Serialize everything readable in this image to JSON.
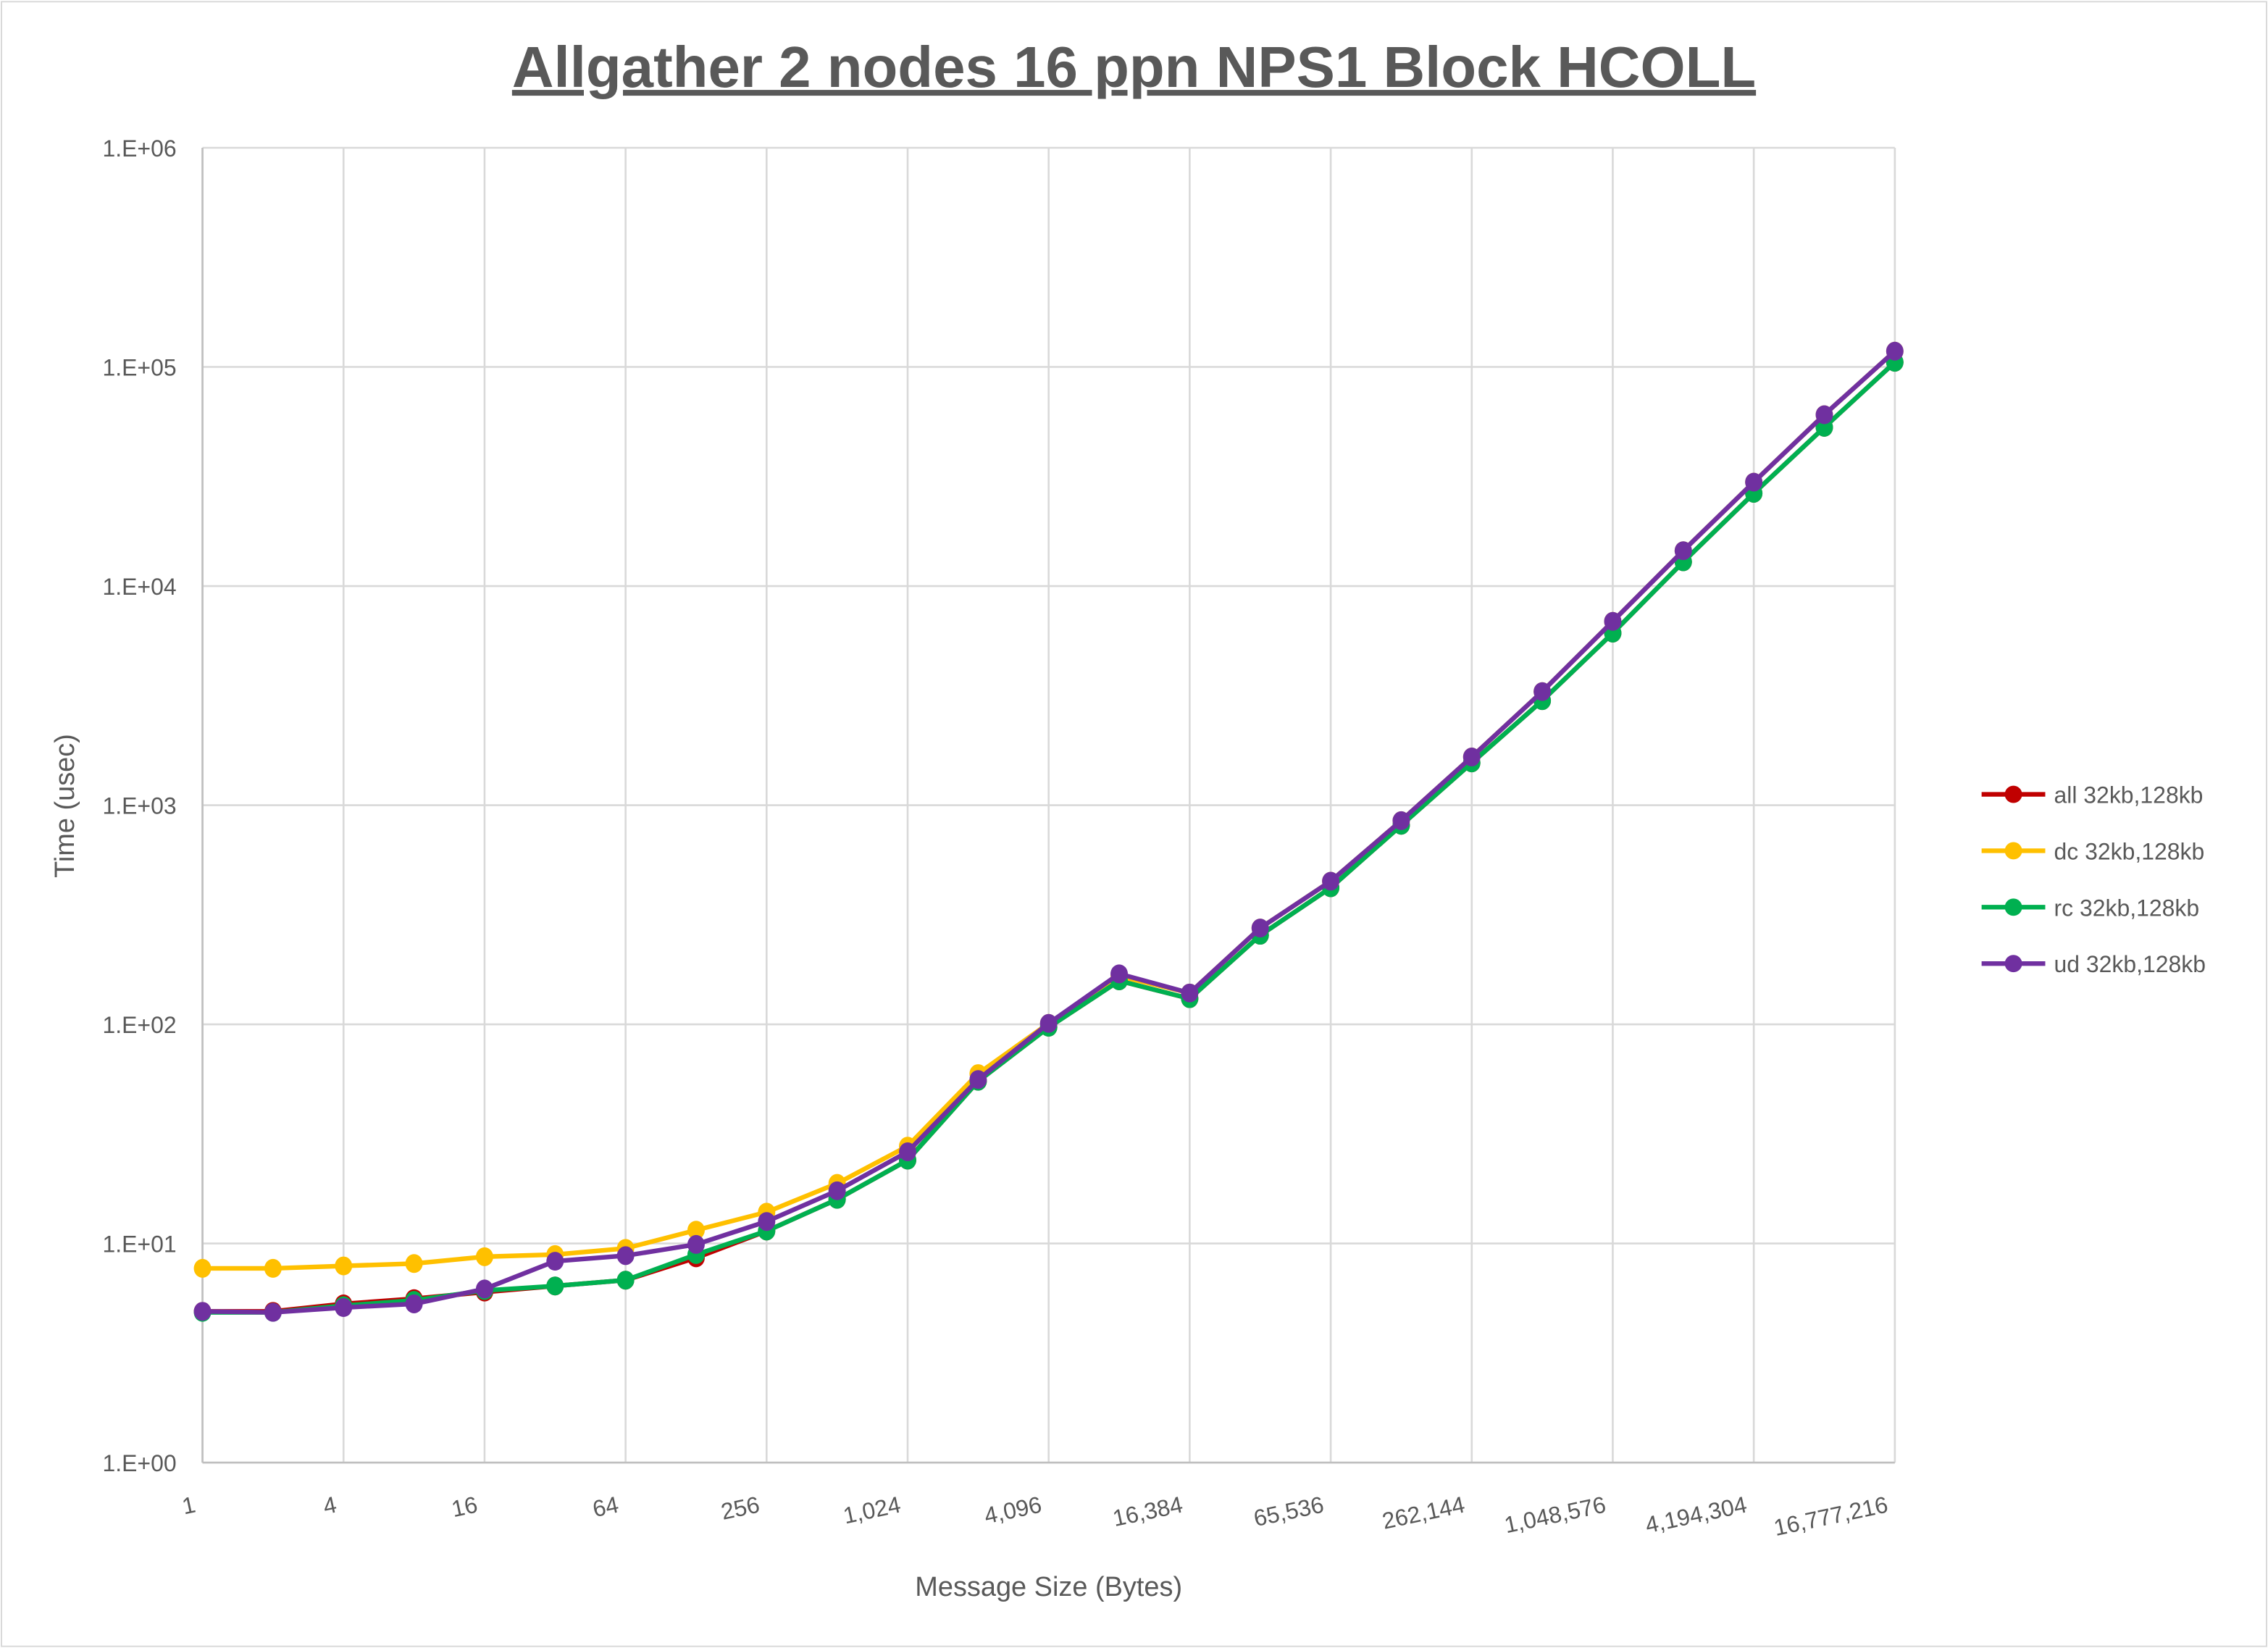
{
  "chart_data": {
    "type": "line",
    "title": "Allgather 2 nodes 16 ppn NPS1 Block HCOLL",
    "xlabel": "Message Size (Bytes)",
    "ylabel": "Time (usec)",
    "y_scale": "log",
    "ylim": [
      1,
      1000000
    ],
    "y_ticks": [
      "1.E+00",
      "1.E+01",
      "1.E+02",
      "1.E+03",
      "1.E+04",
      "1.E+05",
      "1.E+06"
    ],
    "x_scale": "log2",
    "x": [
      1,
      2,
      4,
      8,
      16,
      32,
      64,
      128,
      256,
      512,
      1024,
      2048,
      4096,
      8192,
      16384,
      32768,
      65536,
      131072,
      262144,
      524288,
      1048576,
      2097152,
      4194304,
      8388608,
      16777216
    ],
    "x_tick_labels": [
      "1",
      "4",
      "16",
      "64",
      "256",
      "1,024",
      "4,096",
      "16,384",
      "65,536",
      "262,144",
      "1,048,576",
      "4,194,304",
      "16,777,216"
    ],
    "grid": true,
    "legend_position": "right",
    "series": [
      {
        "name": "all 32kb,128kb",
        "color": "#C00000",
        "values": [
          4.9,
          4.9,
          5.3,
          5.6,
          6.0,
          6.4,
          6.8,
          8.6,
          11.4,
          15.9,
          24,
          55,
          97,
          158,
          131,
          255,
          420,
          810,
          1560,
          3000,
          6100,
          12900,
          26500,
          53000,
          105000
        ]
      },
      {
        "name": "dc 32kb,128kb",
        "color": "#FFC000",
        "values": [
          7.7,
          7.7,
          7.9,
          8.1,
          8.7,
          8.9,
          9.5,
          11.5,
          13.9,
          18.8,
          27.8,
          59.6,
          101,
          166,
          139,
          275,
          450,
          850,
          1660,
          3300,
          6900,
          14500,
          29800,
          60500,
          118000
        ]
      },
      {
        "name": "rc 32kb,128kb",
        "color": "#00B050",
        "values": [
          4.85,
          4.85,
          5.2,
          5.5,
          6.1,
          6.4,
          6.8,
          8.9,
          11.4,
          15.9,
          24,
          55,
          97,
          158,
          131,
          255,
          420,
          810,
          1560,
          3000,
          6100,
          12900,
          26500,
          53000,
          105000
        ]
      },
      {
        "name": "ud 32kb,128kb",
        "color": "#7030A0",
        "values": [
          4.9,
          4.85,
          5.1,
          5.3,
          6.2,
          8.3,
          8.8,
          9.9,
          12.6,
          17.4,
          26.2,
          56,
          101,
          170,
          139,
          275,
          450,
          850,
          1660,
          3300,
          6900,
          14500,
          29800,
          60500,
          118000
        ]
      }
    ]
  }
}
